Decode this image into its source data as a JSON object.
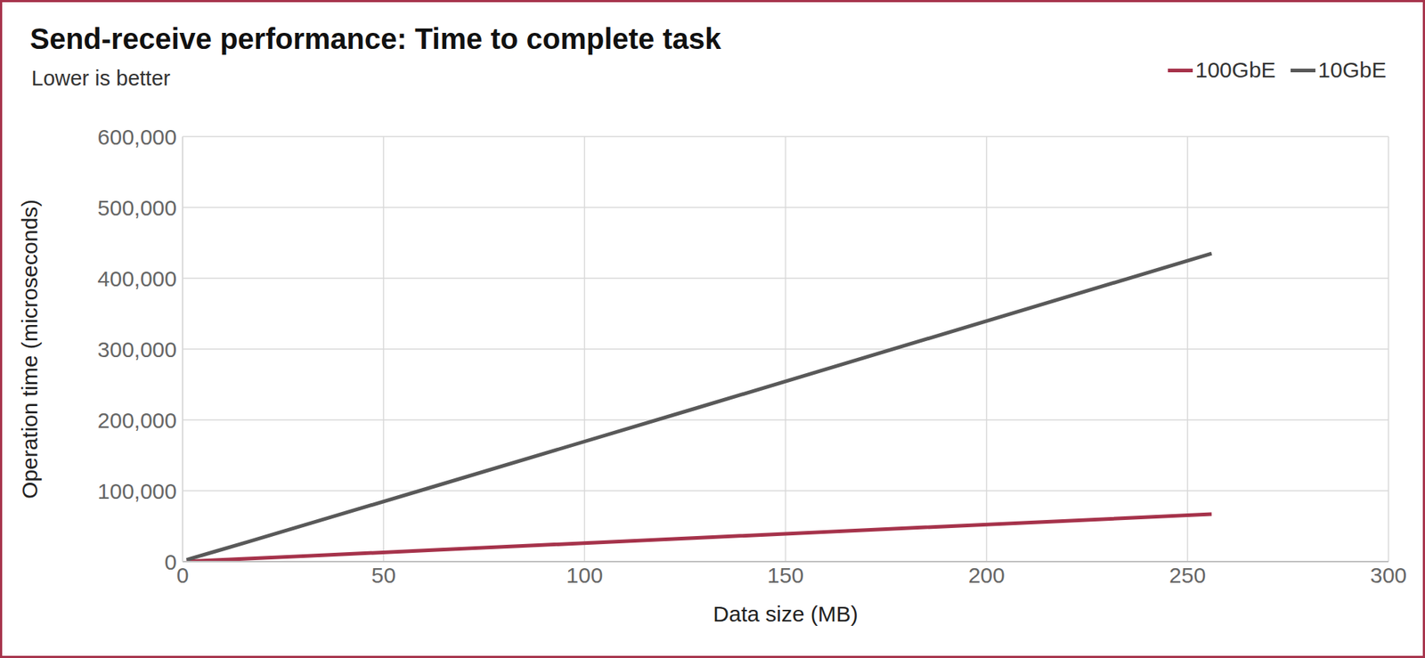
{
  "chart_data": {
    "type": "line",
    "title": "Send-receive performance: Time to complete task",
    "subtitle": "Lower is better",
    "x_label": "Data size (MB)",
    "y_label": "Operation time (microseconds)",
    "x": [
      1,
      2,
      4,
      8,
      16,
      32,
      64,
      128,
      256
    ],
    "series": [
      {
        "name": "100GbE",
        "color": "#a6334b",
        "values": [
          300,
          500,
          1000,
          2000,
          4000,
          8300,
          16700,
          33500,
          67000
        ]
      },
      {
        "name": "10GbE",
        "color": "#595959",
        "values": [
          2500,
          4200,
          7600,
          14200,
          27500,
          54500,
          108500,
          217000,
          435000
        ]
      }
    ],
    "xlim": [
      0,
      300
    ],
    "xticks": [
      0,
      50,
      100,
      150,
      200,
      250,
      300
    ],
    "ylim": [
      0,
      600000
    ],
    "yticks": [
      0,
      {
        "value": 100000,
        "label": "100,000"
      },
      {
        "value": 200000,
        "label": "200,000"
      },
      {
        "value": 300000,
        "label": "300,000"
      },
      {
        "value": 400000,
        "label": "400,000"
      },
      {
        "value": 500000,
        "label": "500,000"
      },
      {
        "value": 600000,
        "label": "600,000"
      }
    ],
    "grid": true,
    "legend": "top right"
  }
}
